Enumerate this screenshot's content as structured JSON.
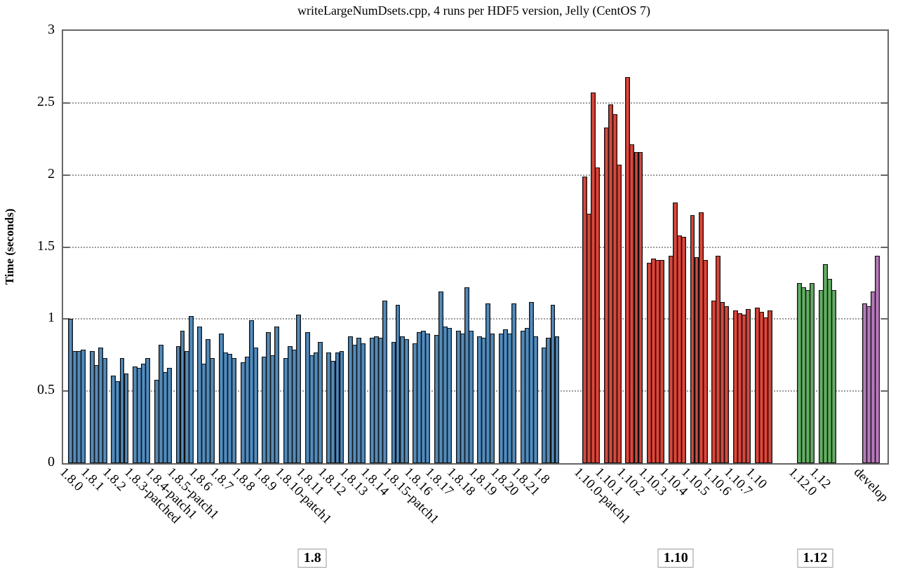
{
  "chart_data": {
    "type": "bar",
    "title": "writeLargeNumDsets.cpp, 4 runs per HDF5 version, Jelly (CentOS 7)",
    "ylabel": "Time (seconds)",
    "xlabel": "",
    "ylim": [
      0,
      3
    ],
    "yticks": [
      0,
      0.5,
      1,
      1.5,
      2,
      2.5,
      3
    ],
    "ytick_labels": [
      "0",
      "0.5",
      "1",
      "1.5",
      "2",
      "2.5",
      "3"
    ],
    "grid": "horizontal dotted lines at each y tick",
    "legend": "none",
    "runs_per_version": 4,
    "sections": [
      {
        "label": "1.8",
        "boxed_label": true,
        "color": "#3a7cb5",
        "versions": [
          {
            "name": "1.8.0",
            "runs": [
              1.0,
              0.78,
              0.78,
              0.79
            ]
          },
          {
            "name": "1.8.1",
            "runs": [
              0.78,
              0.68,
              0.8,
              0.73
            ]
          },
          {
            "name": "1.8.2",
            "runs": [
              0.61,
              0.57,
              0.73,
              0.62
            ]
          },
          {
            "name": "1.8.3-patched",
            "runs": [
              0.67,
              0.66,
              0.69,
              0.73
            ]
          },
          {
            "name": "1.8.4-patch1",
            "runs": [
              0.58,
              0.82,
              0.63,
              0.66
            ]
          },
          {
            "name": "1.8.5-patch1",
            "runs": [
              0.81,
              0.92,
              0.78,
              1.02
            ]
          },
          {
            "name": "1.8.6",
            "runs": [
              0.95,
              0.69,
              0.86,
              0.73
            ]
          },
          {
            "name": "1.8.7",
            "runs": [
              0.9,
              0.77,
              0.76,
              0.73
            ]
          },
          {
            "name": "1.8.8",
            "runs": [
              0.7,
              0.74,
              0.99,
              0.8
            ]
          },
          {
            "name": "1.8.9",
            "runs": [
              0.74,
              0.91,
              0.75,
              0.95
            ]
          },
          {
            "name": "1.8.10-patch1",
            "runs": [
              0.73,
              0.81,
              0.79,
              1.03
            ]
          },
          {
            "name": "1.8.11",
            "runs": [
              0.91,
              0.75,
              0.77,
              0.84
            ]
          },
          {
            "name": "1.8.12",
            "runs": [
              0.77,
              0.71,
              0.77,
              0.78
            ]
          },
          {
            "name": "1.8.13",
            "runs": [
              0.88,
              0.82,
              0.87,
              0.83
            ]
          },
          {
            "name": "1.8.14",
            "runs": [
              0.87,
              0.88,
              0.87,
              1.13
            ]
          },
          {
            "name": "1.8.15-patch1",
            "runs": [
              0.84,
              1.1,
              0.88,
              0.86
            ]
          },
          {
            "name": "1.8.16",
            "runs": [
              0.83,
              0.91,
              0.92,
              0.9
            ]
          },
          {
            "name": "1.8.17",
            "runs": [
              0.89,
              1.19,
              0.95,
              0.94
            ]
          },
          {
            "name": "1.8.18",
            "runs": [
              0.92,
              0.9,
              1.22,
              0.92
            ]
          },
          {
            "name": "1.8.19",
            "runs": [
              0.88,
              0.87,
              1.11,
              0.9
            ]
          },
          {
            "name": "1.8.20",
            "runs": [
              0.9,
              0.93,
              0.9,
              1.11
            ]
          },
          {
            "name": "1.8.21",
            "runs": [
              0.92,
              0.94,
              1.12,
              0.88
            ]
          },
          {
            "name": "1.8",
            "runs": [
              0.8,
              0.87,
              1.1,
              0.88
            ]
          }
        ]
      },
      {
        "label": "1.10",
        "boxed_label": true,
        "color": "#d62b1e",
        "versions": [
          {
            "name": "1.10.0-patch1",
            "runs": [
              1.99,
              1.73,
              2.57,
              2.05
            ]
          },
          {
            "name": "1.10.1",
            "runs": [
              2.33,
              2.49,
              2.42,
              2.07
            ]
          },
          {
            "name": "1.10.2",
            "runs": [
              2.68,
              2.21,
              2.16,
              2.16
            ]
          },
          {
            "name": "1.10.3",
            "runs": [
              1.39,
              1.42,
              1.41,
              1.41
            ]
          },
          {
            "name": "1.10.4",
            "runs": [
              1.44,
              1.81,
              1.58,
              1.57
            ]
          },
          {
            "name": "1.10.5",
            "runs": [
              1.72,
              1.43,
              1.74,
              1.41
            ]
          },
          {
            "name": "1.10.6",
            "runs": [
              1.13,
              1.44,
              1.12,
              1.09
            ]
          },
          {
            "name": "1.10.7",
            "runs": [
              1.06,
              1.04,
              1.03,
              1.07
            ]
          },
          {
            "name": "1.10",
            "runs": [
              1.08,
              1.05,
              1.01,
              1.06
            ]
          }
        ]
      },
      {
        "label": "1.12",
        "boxed_label": true,
        "color": "#4fa64f",
        "versions": [
          {
            "name": "1.12.0",
            "runs": [
              1.25,
              1.22,
              1.2,
              1.25
            ]
          },
          {
            "name": "1.12",
            "runs": [
              1.2,
              1.38,
              1.28,
              1.2
            ]
          }
        ]
      },
      {
        "label": "develop",
        "boxed_label": false,
        "color": "#b169b6",
        "versions": [
          {
            "name": "develop",
            "runs": [
              1.11,
              1.09,
              1.19,
              1.44
            ]
          }
        ]
      }
    ]
  }
}
